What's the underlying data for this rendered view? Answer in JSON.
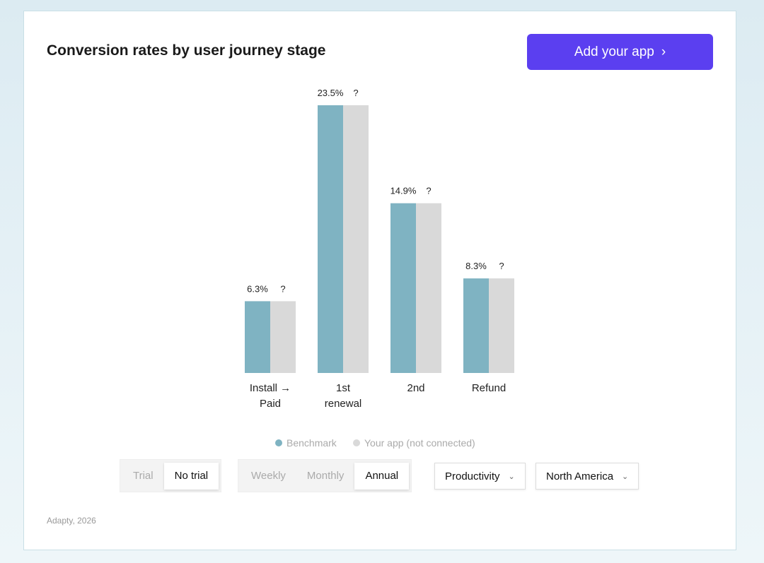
{
  "chart_data": {
    "type": "bar",
    "title": "Conversion rates by user journey stage",
    "categories": [
      "Install → Paid",
      "1st renewal",
      "2nd",
      "Refund"
    ],
    "series": [
      {
        "name": "Benchmark",
        "color": "#7fb3c2",
        "values": [
          6.3,
          23.5,
          14.9,
          8.3
        ],
        "value_labels": [
          "6.3%",
          "23.5%",
          "14.9%",
          "8.3%"
        ]
      },
      {
        "name": "Your app (not connected)",
        "color": "#d9d9d9",
        "values": [
          null,
          null,
          null,
          null
        ],
        "value_labels": [
          "?",
          "?",
          "?",
          "?"
        ]
      }
    ]
  },
  "button": {
    "label": "Add your app",
    "icon": "›"
  },
  "controls": {
    "trial": {
      "options": [
        "Trial",
        "No trial"
      ],
      "selected_index": 1
    },
    "period": {
      "options": [
        "Weekly",
        "Monthly",
        "Annual"
      ],
      "selected_index": 2
    },
    "category_dropdown": {
      "label": "Productivity"
    },
    "region_dropdown": {
      "label": "North America"
    }
  },
  "footer": {
    "source": "Adapty, 2026"
  }
}
